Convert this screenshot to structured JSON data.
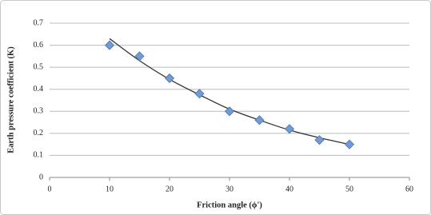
{
  "chart_data": {
    "type": "scatter",
    "x_label": "Friction angle (ϕ')",
    "y_label": "Earth pressure coefficient (K)",
    "xlim": [
      0,
      60
    ],
    "xticks": [
      0,
      10,
      20,
      30,
      40,
      50,
      60
    ],
    "ylim": [
      0,
      0.7
    ],
    "yticks": [
      0,
      0.1,
      0.2,
      0.3,
      0.4,
      0.5,
      0.6,
      0.7
    ],
    "grid": true,
    "series": [
      {
        "color": "#6f9bd6",
        "x": [
          10,
          15,
          20,
          25,
          30,
          35,
          40,
          45,
          50
        ],
        "values": [
          0.6,
          0.55,
          0.45,
          0.38,
          0.3,
          0.26,
          0.22,
          0.17,
          0.15
        ]
      }
    ],
    "trendline": {
      "color": "#333333",
      "x": [
        10,
        15,
        20,
        25,
        30,
        35,
        40,
        45,
        50
      ],
      "values": [
        0.63,
        0.53,
        0.445,
        0.375,
        0.31,
        0.26,
        0.215,
        0.18,
        0.15
      ]
    }
  }
}
